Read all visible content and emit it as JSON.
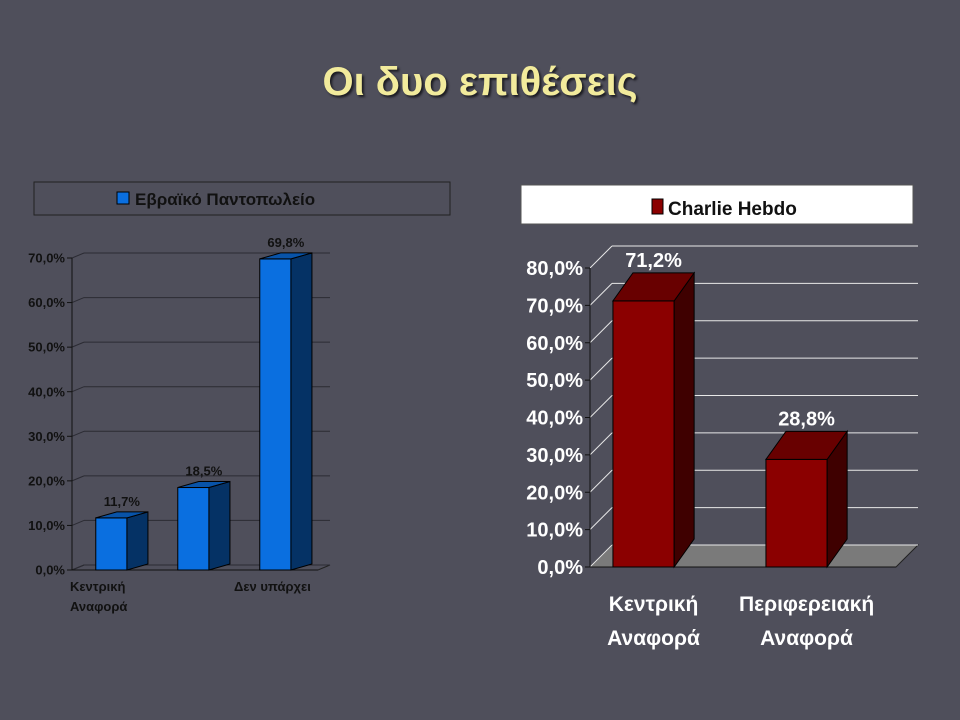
{
  "slide": {
    "title": "Οι δυο επιθέσεις"
  },
  "colors": {
    "background": "#4f4f5b",
    "title": "#f2eb9c",
    "series_left": "#0a6fe0",
    "series_right": "#8b0000"
  },
  "chart_data": [
    {
      "type": "bar",
      "title": "",
      "categories": [
        "Κεντρική Αναφορά",
        "",
        "Δεν υπάρχει"
      ],
      "category_labels_shown": [
        [
          "Κεντρική",
          "Αναφορά"
        ],
        [],
        [
          "Δεν υπάρχει"
        ]
      ],
      "series": [
        {
          "name": "Εβραϊκό Παντοπωλείο",
          "values": [
            11.7,
            18.5,
            69.8
          ],
          "labels": [
            "11,7%",
            "18,5%",
            "69,8%"
          ]
        }
      ],
      "ylim": [
        0,
        70
      ],
      "yticks": [
        "0,0%",
        "10,0%",
        "20,0%",
        "30,0%",
        "40,0%",
        "50,0%",
        "60,0%",
        "70,0%"
      ],
      "grid": true,
      "legend": "top",
      "three_d": true
    },
    {
      "type": "bar",
      "title": "",
      "categories": [
        "Κεντρική Αναφορά",
        "Περιφερειακή Αναφορά"
      ],
      "category_labels_shown": [
        [
          "Κεντρική",
          "Αναφορά"
        ],
        [
          "Περιφερειακή",
          "Αναφορά"
        ]
      ],
      "series": [
        {
          "name": "Charlie Hebdo",
          "values": [
            71.2,
            28.8
          ],
          "labels": [
            "71,2%",
            "28,8%"
          ]
        }
      ],
      "ylim": [
        0,
        80
      ],
      "yticks": [
        "0,0%",
        "10,0%",
        "20,0%",
        "30,0%",
        "40,0%",
        "50,0%",
        "60,0%",
        "70,0%",
        "80,0%"
      ],
      "grid": true,
      "legend": "top",
      "three_d": true
    }
  ]
}
